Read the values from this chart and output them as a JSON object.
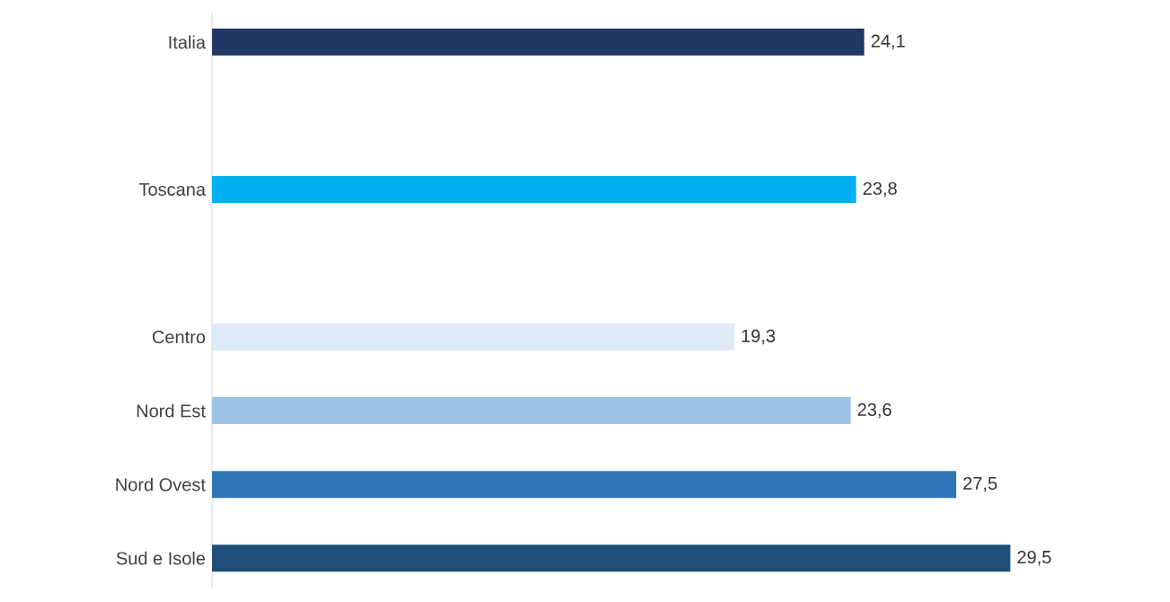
{
  "chart_data": {
    "type": "bar",
    "orientation": "horizontal",
    "categories": [
      "Italia",
      null,
      "Toscana",
      null,
      "Centro",
      "Nord Est",
      "Nord Ovest",
      "Sud e Isole"
    ],
    "values": [
      24.1,
      null,
      23.8,
      null,
      19.3,
      23.6,
      27.5,
      29.5
    ],
    "colors": [
      "#1f3864",
      "#ffffff",
      "#00b0f0",
      "#ffffff",
      "#deebf7",
      "#9dc3e6",
      "#2e75b6",
      "#1f4e79"
    ],
    "value_labels": [
      "24,1",
      null,
      "23,8",
      null,
      "19,3",
      "23,6",
      "27,5",
      "29,5"
    ],
    "tick_labels": "y"
  }
}
